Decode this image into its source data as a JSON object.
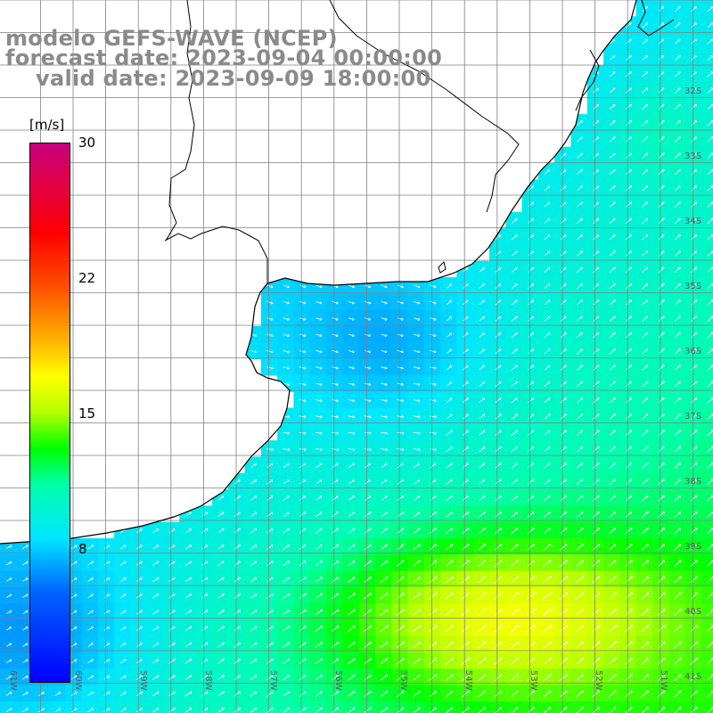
{
  "title": {
    "line1": "modelo GEFS-WAVE (NCEP)",
    "line2": "forecast date: 2023-09-04 00:00:00",
    "line3": "valid date: 2023-09-09 18:00:00"
  },
  "colorbar": {
    "unit": "[m/s]",
    "min": 0,
    "max": 30,
    "ticks": [
      {
        "value": 30,
        "label": "30"
      },
      {
        "value": 22,
        "label": "22"
      },
      {
        "value": 15,
        "label": "15"
      },
      {
        "value": 8,
        "label": "8"
      }
    ],
    "stops": [
      {
        "value": 0,
        "color": "#0000ff"
      },
      {
        "value": 5,
        "color": "#0064ff"
      },
      {
        "value": 8,
        "color": "#00e6ff"
      },
      {
        "value": 11,
        "color": "#00ffaa"
      },
      {
        "value": 13,
        "color": "#00ff00"
      },
      {
        "value": 15,
        "color": "#b4ff00"
      },
      {
        "value": 17,
        "color": "#ffff00"
      },
      {
        "value": 19,
        "color": "#ffb400"
      },
      {
        "value": 22,
        "color": "#ff5000"
      },
      {
        "value": 25,
        "color": "#ff0000"
      },
      {
        "value": 30,
        "color": "#c8007d"
      }
    ]
  },
  "map": {
    "lon_labels": [
      "61W",
      "60W",
      "59W",
      "58W",
      "57W",
      "56W",
      "55W",
      "54W",
      "53W",
      "52W",
      "51W"
    ],
    "lat_labels": [
      "32S",
      "33S",
      "34S",
      "35S",
      "36S",
      "37S",
      "38S",
      "39S",
      "40S",
      "41S"
    ],
    "land_color": "#ffffff",
    "coast_color": "#000000",
    "grid_color": "#808080",
    "arrow_color": "#ffffff"
  }
}
